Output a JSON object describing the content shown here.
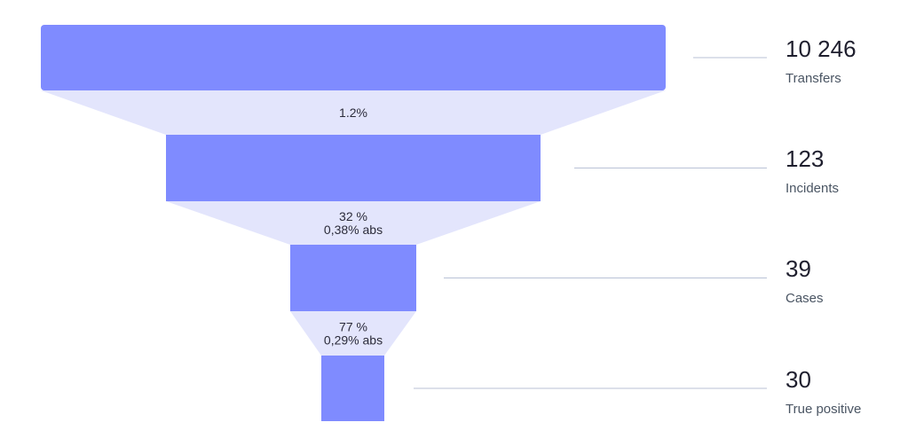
{
  "chart_data": {
    "type": "funnel",
    "stages": [
      {
        "label": "Transfers",
        "value": 10246,
        "display": "10 246"
      },
      {
        "label": "Incidents",
        "value": 123,
        "display": "123"
      },
      {
        "label": "Cases",
        "value": 39,
        "display": "39"
      },
      {
        "label": "True positive",
        "value": 30,
        "display": "30"
      }
    ],
    "conversions": [
      {
        "from": "Transfers",
        "to": "Incidents",
        "lines": [
          "1.2%"
        ]
      },
      {
        "from": "Incidents",
        "to": "Cases",
        "lines": [
          "32 %",
          "0,38% abs"
        ]
      },
      {
        "from": "Cases",
        "to": "True positive",
        "lines": [
          "77 %",
          "0,29% abs"
        ]
      }
    ],
    "colors": {
      "bar": "#7f8bff",
      "connector": "#e3e5fc",
      "leader": "#b9c2d6"
    }
  }
}
